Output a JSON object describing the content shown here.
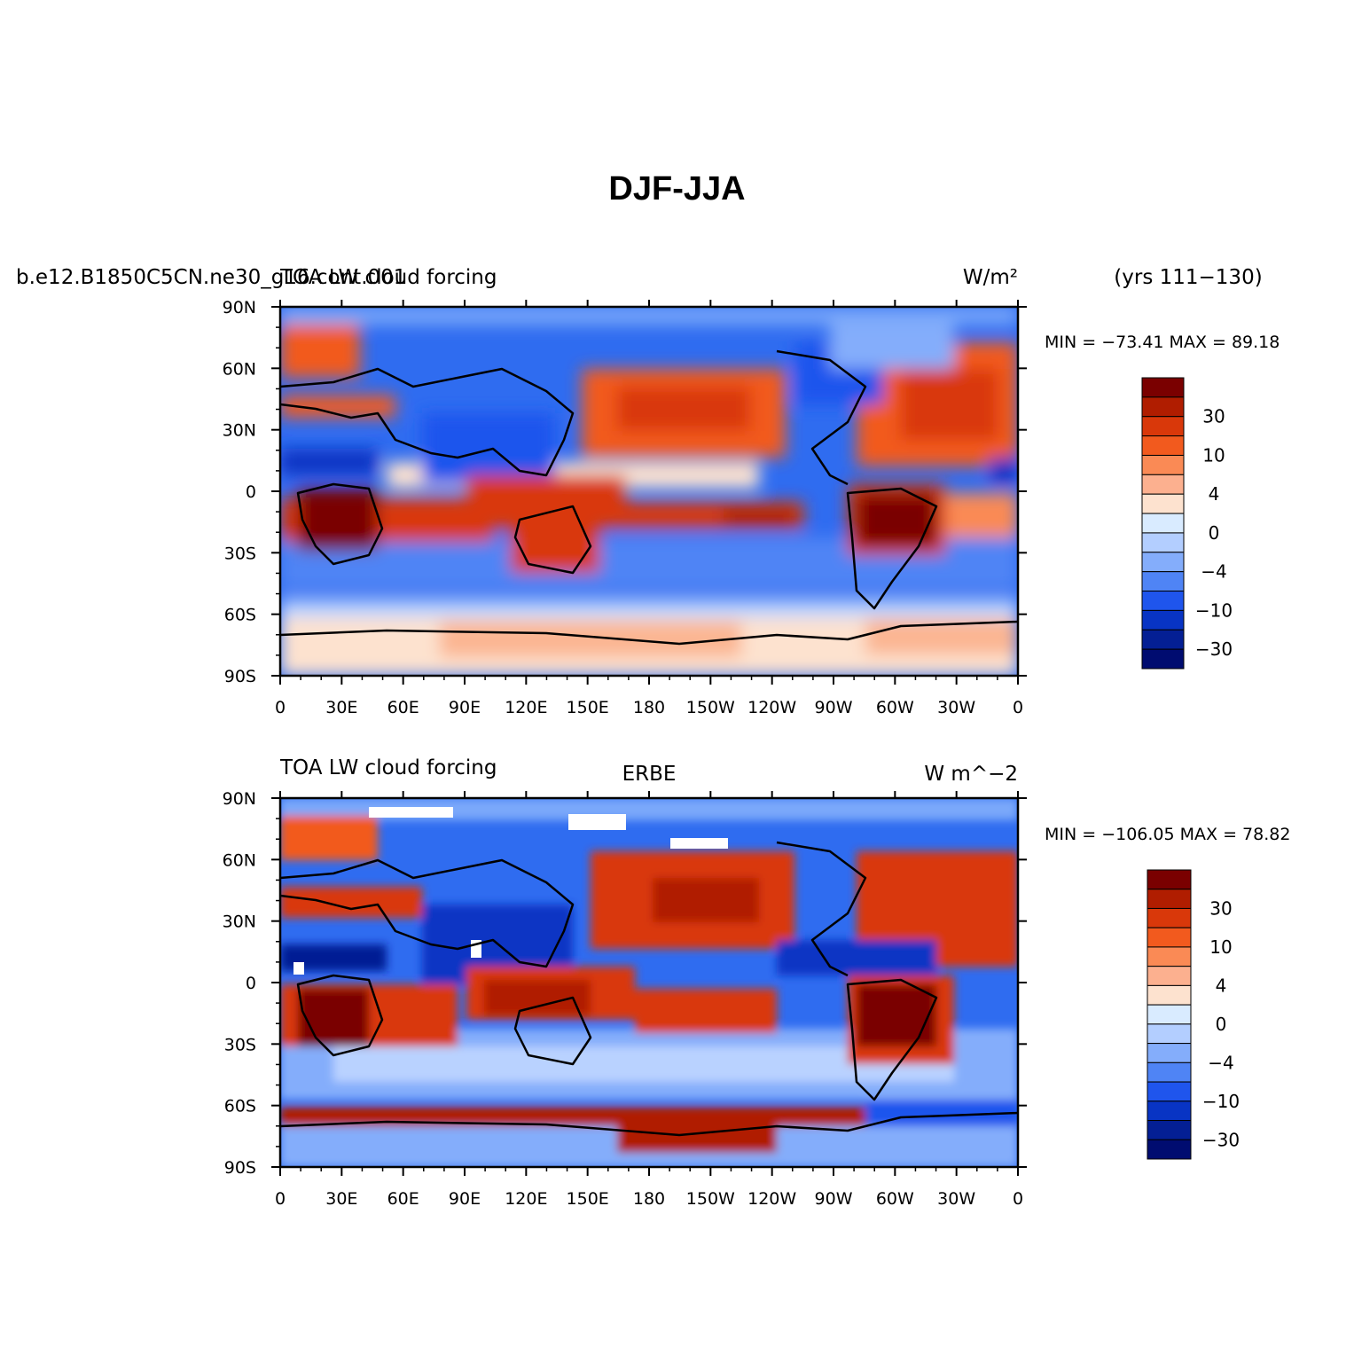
{
  "title": "DJF-JJA",
  "x_ticks": [
    "0",
    "30E",
    "60E",
    "90E",
    "120E",
    "150E",
    "180",
    "150W",
    "120W",
    "90W",
    "60W",
    "30W",
    "0"
  ],
  "y_ticks": [
    "90N",
    "60N",
    "30N",
    "0",
    "30S",
    "60S",
    "90S"
  ],
  "colorbar_labels": [
    "30",
    "10",
    "4",
    "0",
    "−4",
    "−10",
    "−30"
  ],
  "colorbar_colors": [
    "#7a0000",
    "#b01d00",
    "#d9380a",
    "#f25a1e",
    "#fa8a55",
    "#fcb08f",
    "#fde2cf",
    "#d9ebff",
    "#b3ceff",
    "#84adfb",
    "#4f84f5",
    "#1f55ed",
    "#0834c4",
    "#041f94",
    "#000c70"
  ],
  "panels": [
    {
      "left_title": "TOA LW cloud forcing",
      "case_label": "b.e12.B1850C5CN.ne30_g16.cont.001",
      "center_title": "",
      "units": "W/m²",
      "years": "(yrs 111−130)",
      "minmax": "MIN = −73.41  MAX =  89.18"
    },
    {
      "left_title": "TOA LW cloud forcing",
      "case_label": "",
      "center_title": "ERBE",
      "units": "W  m^−2",
      "years": "",
      "minmax": "MIN = −106.05  MAX =  78.82"
    }
  ]
}
